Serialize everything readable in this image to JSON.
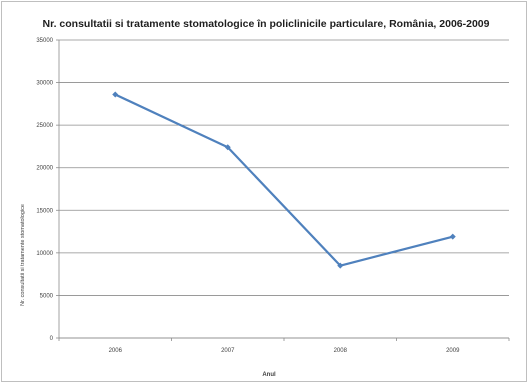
{
  "chart_data": {
    "type": "line",
    "title": "Nr. consultatii si tratamente stomatologice în policlinicile particulare, România, 2006-2009",
    "xlabel": "Anul",
    "ylabel": "Nr. consultatii si tratamente stomatologice",
    "categories": [
      "2006",
      "2007",
      "2008",
      "2009"
    ],
    "series": [
      {
        "values": [
          28600,
          22400,
          8500,
          11900
        ]
      }
    ],
    "ylim": [
      0,
      35000
    ],
    "yticks": [
      "0",
      "5000",
      "10000",
      "15000",
      "20000",
      "25000",
      "30000",
      "35000"
    ],
    "grid": "horizontal",
    "legend": "none",
    "line_color": "#4f81bd",
    "grid_color": "#8c8c8c"
  }
}
